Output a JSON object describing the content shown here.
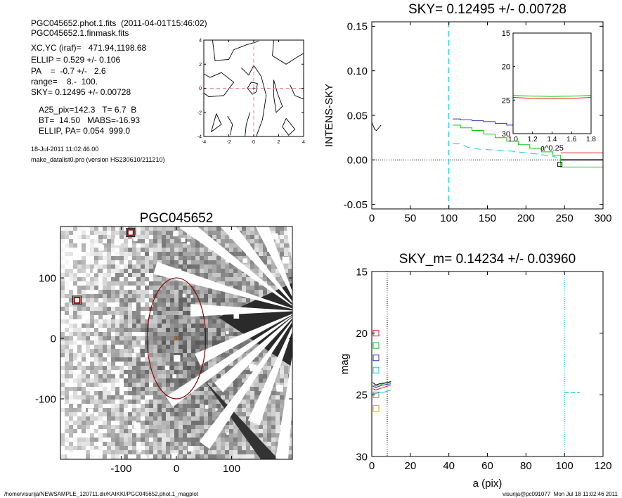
{
  "header_info": {
    "file_line": "PGC045652.phot.1.fits  (2011-04-01T15:46:02)",
    "mask_line": "PGC045652.1.finmask.fits",
    "xcyc_line": "XC,YC (iraf)=   471.94,1198.68",
    "ellip_line": "ELLIP = 0.529 +/- 0.106",
    "pa_line": "PA    =  -0.7 +/-   2.6",
    "range_line": "range=    8.-  100.",
    "sky_line": "SKY= 0.12495 +/- 0.00728",
    "a25_line": "A25_pix=142.3   T= 6.7  B",
    "bt_line": "BT=  14.50   MABS=-16.93",
    "ellip_pa_line": "ELLIP, PA= 0.054  999.0",
    "date_line": "18-Jul-2011 11:02:46.00",
    "prog_line": "make_datalist0.pro (version HS230610/211210)"
  },
  "footer": {
    "path": "/home/visurija/NEWSAMPLE_120711.dir/KAIKKI/PGC045652.phot.1_magplot",
    "user": "visurija@pc091077  Mon Jul 18 11:02:46 2011"
  },
  "colors": {
    "cyan": "#00d0e8",
    "red": "#e02020",
    "green": "#10c010",
    "blue": "#3030c0",
    "darkred": "#8b0000",
    "pink": "#ee8080"
  },
  "chart_data": [
    {
      "id": "contour",
      "type": "contour",
      "xlim": [
        -4,
        4
      ],
      "ylim": [
        -4,
        4
      ],
      "xticks": [
        -4,
        -2,
        0,
        2,
        4
      ],
      "yticks": [
        -4,
        -2,
        0,
        2,
        4
      ],
      "contours": [
        [
          [
            -3.3,
            4
          ],
          [
            -3.1,
            2.3
          ],
          [
            -2.0,
            2.4
          ],
          [
            -1.6,
            3.2
          ],
          [
            -0.6,
            3.6
          ],
          [
            0.4,
            3.9
          ]
        ],
        [
          [
            1.6,
            4
          ],
          [
            1.5,
            2.7
          ],
          [
            2.6,
            2.0
          ],
          [
            3.5,
            2.6
          ],
          [
            4,
            2.9
          ]
        ],
        [
          [
            -4,
            1.2
          ],
          [
            -3.5,
            0.9
          ],
          [
            -2.6,
            1.3
          ],
          [
            -1.6,
            0.5
          ],
          [
            -2.4,
            -0.6
          ],
          [
            -3.6,
            -0.7
          ],
          [
            -4,
            -0.4
          ]
        ],
        [
          [
            -1.0,
            1.7
          ],
          [
            -0.4,
            1.1
          ],
          [
            0.0,
            1.9
          ],
          [
            0.6,
            1.0
          ],
          [
            1.0,
            -0.6
          ],
          [
            0.7,
            -2.6
          ],
          [
            0.2,
            -4
          ]
        ],
        [
          [
            -0.5,
            0.0
          ],
          [
            -0.2,
            0.5
          ],
          [
            0.3,
            0.4
          ],
          [
            0.2,
            -0.3
          ],
          [
            -0.1,
            -0.5
          ],
          [
            -0.5,
            0.0
          ]
        ],
        [
          [
            -0.3,
            -2.0
          ],
          [
            -0.6,
            -3.0
          ],
          [
            -0.7,
            -4
          ]
        ],
        [
          [
            1.6,
            0.7
          ],
          [
            1.9,
            -0.4
          ],
          [
            2.3,
            -1.5
          ],
          [
            1.8,
            -2.0
          ],
          [
            1.6,
            -0.6
          ],
          [
            1.6,
            0.7
          ]
        ],
        [
          [
            2.9,
            0.3
          ],
          [
            3.3,
            -0.6
          ],
          [
            4,
            -0.9
          ]
        ],
        [
          [
            -3.0,
            -2.1
          ],
          [
            -2.6,
            -3.0
          ],
          [
            -3.4,
            -3.6
          ],
          [
            -3.0,
            -2.1
          ]
        ],
        [
          [
            -2.1,
            -2.3
          ],
          [
            -1.7,
            -3.0
          ],
          [
            -1.9,
            -3.9
          ]
        ],
        [
          [
            2.6,
            -2.5
          ],
          [
            3.3,
            -3.4
          ],
          [
            2.8,
            -3.9
          ],
          [
            2.3,
            -3.2
          ],
          [
            2.6,
            -2.5
          ]
        ]
      ],
      "crosshair": {
        "x": 0,
        "y": 0
      }
    },
    {
      "id": "sky-profile",
      "type": "line",
      "title": "SKY= 0.12495 +/- 0.00728",
      "xlabel": "",
      "ylabel": "INTENS-SKY",
      "xlim": [
        0,
        300
      ],
      "ylim": [
        -0.055,
        0.155
      ],
      "xticks": [
        0,
        50,
        100,
        150,
        200,
        250,
        300
      ],
      "yticks": [
        -0.05,
        0.0,
        0.05,
        0.1,
        0.15
      ],
      "ytick_labels": [
        "-0.05",
        "0.00",
        "0.05",
        "0.10",
        "0.15"
      ],
      "zero_line": 0,
      "vline_x": 100,
      "inner_curve": [
        [
          0,
          0.042
        ],
        [
          2,
          0.038
        ],
        [
          4,
          0.034
        ],
        [
          6,
          0.033
        ],
        [
          8,
          0.035
        ],
        [
          10,
          0.037
        ],
        [
          12,
          0.039
        ]
      ],
      "series": [
        {
          "color": "blue",
          "points": [
            [
              105,
              0.046
            ],
            [
              115,
              0.046
            ],
            [
              115,
              0.045
            ],
            [
              130,
              0.045
            ],
            [
              130,
              0.044
            ],
            [
              145,
              0.044
            ],
            [
              145,
              0.043
            ],
            [
              160,
              0.043
            ],
            [
              160,
              0.041
            ],
            [
              175,
              0.041
            ],
            [
              175,
              0.039
            ],
            [
              190,
              0.039
            ],
            [
              190,
              0.037
            ],
            [
              205,
              0.037
            ],
            [
              205,
              0.034
            ],
            [
              215,
              0.034
            ]
          ]
        },
        {
          "color": "green",
          "points": [
            [
              105,
              0.039
            ],
            [
              115,
              0.039
            ],
            [
              115,
              0.036
            ],
            [
              130,
              0.036
            ],
            [
              130,
              0.033
            ],
            [
              145,
              0.033
            ],
            [
              145,
              0.029
            ],
            [
              160,
              0.029
            ],
            [
              160,
              0.025
            ],
            [
              175,
              0.025
            ],
            [
              175,
              0.021
            ],
            [
              190,
              0.021
            ],
            [
              190,
              0.017
            ],
            [
              205,
              0.017
            ],
            [
              205,
              0.013
            ],
            [
              220,
              0.013
            ],
            [
              220,
              0.009
            ],
            [
              235,
              0.009
            ],
            [
              235,
              0.005
            ],
            [
              245,
              0.005
            ],
            [
              245,
              -0.008
            ],
            [
              300,
              -0.008
            ]
          ]
        },
        {
          "color": "cyan",
          "dashed": true,
          "points": [
            [
              105,
              0.018
            ],
            [
              115,
              0.018
            ],
            [
              125,
              0.014
            ],
            [
              140,
              0.012
            ],
            [
              160,
              0.011
            ],
            [
              180,
              0.01
            ],
            [
              200,
              0.008
            ],
            [
              220,
              0.006
            ],
            [
              240,
              0.003
            ]
          ]
        },
        {
          "color": "red",
          "points": [
            [
              245,
              0.008
            ],
            [
              300,
              0.008
            ]
          ]
        },
        {
          "color": "black",
          "points": [
            [
              245,
              0.0
            ],
            [
              300,
              0.0
            ]
          ]
        }
      ],
      "square_marker": [
        244,
        -0.005
      ],
      "inset": {
        "xlabel": "a^0.25",
        "xlim": [
          1.0,
          1.8
        ],
        "ylim": [
          15,
          30
        ],
        "xticks": [
          1.0,
          1.2,
          1.4,
          1.6,
          1.8
        ],
        "xtick_labels": [
          "1.0",
          "1.2",
          "1.4",
          "1.6",
          "1.8"
        ],
        "yticks": [
          15,
          20,
          25,
          30
        ],
        "lines": [
          {
            "color": "green",
            "points": [
              [
                1.0,
                24.3
              ],
              [
                1.2,
                24.4
              ],
              [
                1.4,
                24.45
              ],
              [
                1.6,
                24.4
              ],
              [
                1.8,
                24.3
              ]
            ]
          },
          {
            "color": "red",
            "points": [
              [
                1.0,
                24.6
              ],
              [
                1.2,
                24.75
              ],
              [
                1.4,
                24.8
              ],
              [
                1.6,
                24.75
              ],
              [
                1.8,
                24.6
              ]
            ]
          }
        ]
      }
    },
    {
      "id": "image-map",
      "type": "image",
      "title": "PGC045652",
      "xlim": [
        -210,
        210
      ],
      "ylim": [
        -200,
        185
      ],
      "xticks": [
        -100,
        0,
        100
      ],
      "yticks": [
        -100,
        0,
        100
      ],
      "ellipse": {
        "cx": 0,
        "cy": 0,
        "rx": 53,
        "ry": 100
      },
      "center_marker": [
        0,
        0
      ],
      "star_markers": [
        [
          -180,
          63
        ],
        [
          -83,
          175
        ]
      ]
    },
    {
      "id": "mag-profile",
      "type": "line",
      "title": "SKY_m=  0.14234 +/- 0.03960",
      "xlabel": "a (pix)",
      "ylabel": "mag",
      "xlim": [
        0,
        120
      ],
      "ylim": [
        15,
        30
      ],
      "y_inverted": true,
      "xticks": [
        0,
        20,
        40,
        60,
        80,
        100,
        120
      ],
      "yticks": [
        15,
        20,
        25,
        30
      ],
      "vline_dotted_x": 8,
      "vline_cyan_x": 100,
      "cyan_dash": [
        [
          100,
          24.8
        ],
        [
          108,
          24.8
        ]
      ],
      "legend_squares": [
        {
          "color": "red",
          "y": 20.0
        },
        {
          "color": "green",
          "y": 21.0
        },
        {
          "color": "blue",
          "y": 22.0
        },
        {
          "color": "cyan",
          "y": 23.0
        },
        {
          "color": "gray",
          "y": 25.0
        },
        {
          "color": "yellow",
          "y": 26.1
        }
      ],
      "curves": [
        {
          "color": "green",
          "points": [
            [
              0.5,
              24.2
            ],
            [
              2,
              24.3
            ],
            [
              4,
              24.2
            ],
            [
              6,
              24.1
            ],
            [
              8,
              24.0
            ],
            [
              10,
              23.9
            ]
          ]
        },
        {
          "color": "red",
          "points": [
            [
              0.5,
              24.5
            ],
            [
              2,
              24.6
            ],
            [
              4,
              24.5
            ],
            [
              6,
              24.4
            ],
            [
              8,
              24.3
            ],
            [
              10,
              24.2
            ]
          ]
        },
        {
          "color": "blue",
          "points": [
            [
              0.5,
              24.3
            ],
            [
              2,
              24.4
            ],
            [
              4,
              24.3
            ],
            [
              6,
              24.2
            ],
            [
              8,
              24.15
            ],
            [
              10,
              24.1
            ]
          ]
        },
        {
          "color": "black",
          "points": [
            [
              0.5,
              24.0
            ],
            [
              2,
              24.2
            ],
            [
              4,
              24.1
            ],
            [
              6,
              24.05
            ],
            [
              8,
              24.0
            ],
            [
              10,
              23.95
            ]
          ]
        },
        {
          "color": "cyan",
          "points": [
            [
              0.5,
              24.9
            ],
            [
              2,
              24.9
            ],
            [
              4,
              24.8
            ],
            [
              6,
              24.8
            ],
            [
              8,
              24.7
            ],
            [
              10,
              24.6
            ]
          ]
        }
      ]
    }
  ]
}
